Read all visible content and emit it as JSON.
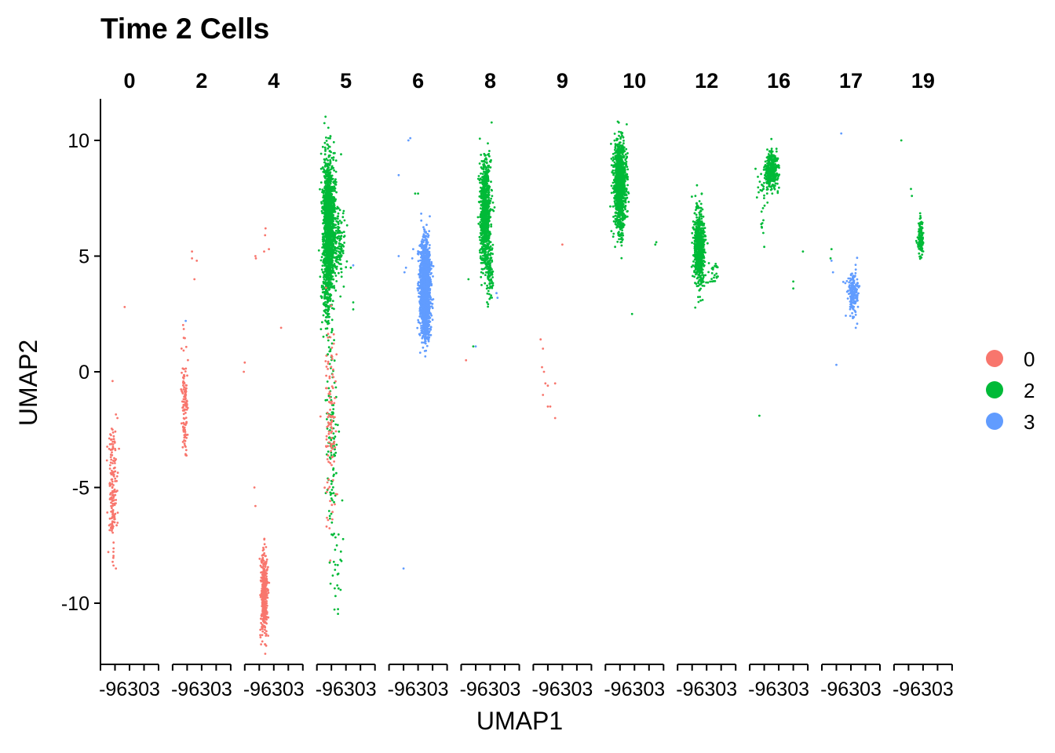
{
  "chart_data": {
    "type": "scatter",
    "title": "Time 2 Cells",
    "xlabel": "UMAP1",
    "ylabel": "UMAP2",
    "ylim": [
      -12.5,
      12
    ],
    "y_ticks": [
      10,
      5,
      0,
      -5,
      -10
    ],
    "y_tick_labels": [
      "10",
      "5",
      "0",
      "-5",
      "-10"
    ],
    "x_ticks_per_panel": [
      -9,
      -6,
      -3,
      0,
      3
    ],
    "x_tick_label_per_panel": "-96303",
    "legend_position": "right",
    "grid": false,
    "series": [
      {
        "name": "0",
        "color": "#F8766D"
      },
      {
        "name": "2",
        "color": "#00BA38"
      },
      {
        "name": "3",
        "color": "#619CFF"
      }
    ],
    "facets": [
      {
        "label": "0",
        "clusters": [
          {
            "series": "0",
            "cx": -6.5,
            "cy": -5.0,
            "sx": 0.45,
            "sy": 1.3,
            "n": 170,
            "points": [
              [
                -4.0,
                2.8
              ],
              [
                -6.5,
                -0.4
              ],
              [
                -5.8,
                -8.5
              ],
              [
                -5.5,
                -2.0
              ]
            ]
          }
        ]
      },
      {
        "label": "2",
        "clusters": [
          {
            "series": "0",
            "cx": -6.5,
            "cy": -1.3,
            "sx": 0.3,
            "sy": 1.2,
            "n": 120,
            "points": [
              [
                -5.0,
                5.2
              ],
              [
                -5.0,
                4.9
              ],
              [
                -4.0,
                4.8
              ],
              [
                -4.5,
                4.0
              ],
              [
                -6.3,
                -3.6
              ]
            ]
          },
          {
            "series": "3",
            "points": [
              [
                -6.3,
                2.2
              ]
            ]
          }
        ]
      },
      {
        "label": "4",
        "clusters": [
          {
            "series": "0",
            "cx": -5.0,
            "cy": -9.6,
            "sx": 0.35,
            "sy": 0.9,
            "n": 380,
            "points": [
              [
                -6.8,
                5.0
              ],
              [
                -6.7,
                4.9
              ],
              [
                -5.0,
                5.2
              ],
              [
                -4.0,
                5.3
              ],
              [
                -4.7,
                6.2
              ],
              [
                -4.8,
                5.9
              ],
              [
                -1.5,
                1.9
              ],
              [
                -9.0,
                0.4
              ],
              [
                -9.2,
                0.0
              ],
              [
                -7.0,
                -5.0
              ],
              [
                -6.8,
                -5.8
              ]
            ]
          }
        ]
      },
      {
        "label": "5",
        "clusters": [
          {
            "series": "2",
            "cx": -6.5,
            "cy": 6.5,
            "sx": 0.6,
            "sy": 1.3,
            "n": 1400
          },
          {
            "series": "2",
            "cx": -6.8,
            "cy": 3.8,
            "sx": 0.5,
            "sy": 1.0,
            "n": 300
          },
          {
            "series": "2",
            "cx": -4.5,
            "cy": 5.5,
            "sx": 0.7,
            "sy": 0.8,
            "n": 120
          },
          {
            "series": "2",
            "cx": -5.8,
            "cy": -3.0,
            "sx": 0.6,
            "sy": 2.0,
            "n": 110
          },
          {
            "series": "0",
            "cx": -6.2,
            "cy": -2.0,
            "sx": 0.6,
            "sy": 2.2,
            "n": 110
          },
          {
            "series": "2",
            "cx": -5.0,
            "cy": -8.0,
            "sx": 0.6,
            "sy": 1.4,
            "n": 25
          },
          {
            "series": "2",
            "points": [
              [
                -4.0,
                9.4
              ],
              [
                -1.5,
                3.0
              ],
              [
                -1.5,
                2.7
              ],
              [
                -2.0,
                4.5
              ]
            ]
          },
          {
            "series": "3",
            "points": [
              [
                -1.5,
                4.6
              ]
            ]
          }
        ]
      },
      {
        "label": "6",
        "clusters": [
          {
            "series": "3",
            "cx": -1.5,
            "cy": 3.6,
            "sx": 0.55,
            "sy": 1.0,
            "n": 1600
          },
          {
            "series": "3",
            "points": [
              [
                -5.0,
                10.0
              ],
              [
                -4.6,
                10.1
              ],
              [
                -7.0,
                8.5
              ],
              [
                -7.0,
                5.0
              ],
              [
                -5.5,
                4.5
              ],
              [
                -5.8,
                4.3
              ],
              [
                -4.0,
                5.3
              ],
              [
                -4.2,
                4.9
              ],
              [
                -6.0,
                -8.5
              ]
            ]
          },
          {
            "series": "2",
            "points": [
              [
                -3.0,
                7.7
              ],
              [
                -3.6,
                7.7
              ]
            ]
          }
        ]
      },
      {
        "label": "8",
        "clusters": [
          {
            "series": "2",
            "cx": -4.0,
            "cy": 6.8,
            "sx": 0.5,
            "sy": 1.2,
            "n": 900
          },
          {
            "series": "2",
            "cx": -3.0,
            "cy": 4.2,
            "sx": 0.3,
            "sy": 0.6,
            "n": 80
          },
          {
            "series": "3",
            "points": [
              [
                -1.5,
                3.2
              ],
              [
                -1.7,
                3.4
              ],
              [
                -6.0,
                1.1
              ]
            ]
          },
          {
            "series": "2",
            "points": [
              [
                -7.5,
                4.0
              ],
              [
                -6.5,
                1.1
              ]
            ]
          },
          {
            "series": "0",
            "points": [
              [
                -8.0,
                0.5
              ]
            ]
          }
        ]
      },
      {
        "label": "9",
        "clusters": [
          {
            "series": "0",
            "points": [
              [
                -7.5,
                1.4
              ],
              [
                -7.0,
                1.0
              ],
              [
                -7.2,
                0.2
              ],
              [
                -6.8,
                0.0
              ],
              [
                -6.5,
                -0.5
              ],
              [
                -6.0,
                -0.6
              ],
              [
                -5.5,
                -1.5
              ],
              [
                -4.5,
                -0.5
              ],
              [
                -4.5,
                -2.0
              ],
              [
                -7.0,
                -1.0
              ],
              [
                -6.0,
                -1.5
              ],
              [
                -3.0,
                5.5
              ]
            ]
          }
        ]
      },
      {
        "label": "10",
        "clusters": [
          {
            "series": "2",
            "cx": -6.0,
            "cy": 8.2,
            "sx": 0.6,
            "sy": 0.9,
            "n": 1100
          },
          {
            "series": "2",
            "cx": -6.0,
            "cy": 6.4,
            "sx": 0.5,
            "sy": 0.4,
            "n": 60
          },
          {
            "series": "2",
            "points": [
              [
                -7.0,
                5.4
              ],
              [
                -3.5,
                2.5
              ],
              [
                1.5,
                5.6
              ],
              [
                1.3,
                5.5
              ]
            ]
          }
        ]
      },
      {
        "label": "12",
        "clusters": [
          {
            "series": "2",
            "cx": -4.5,
            "cy": 5.4,
            "sx": 0.55,
            "sy": 0.8,
            "n": 700
          },
          {
            "series": "2",
            "cx": -1.5,
            "cy": 4.2,
            "sx": 0.5,
            "sy": 0.35,
            "n": 25
          },
          {
            "series": "2",
            "points": [
              [
                -4.0,
                7.7
              ]
            ]
          }
        ]
      },
      {
        "label": "16",
        "clusters": [
          {
            "series": "2",
            "cx": -4.5,
            "cy": 8.7,
            "sx": 0.7,
            "sy": 0.4,
            "n": 320
          },
          {
            "series": "2",
            "cx": -6.5,
            "cy": 7.5,
            "sx": 0.6,
            "sy": 0.8,
            "n": 25
          },
          {
            "series": "2",
            "points": [
              [
                -6.0,
                5.4
              ],
              [
                -6.2,
                6.0
              ],
              [
                -7.0,
                -1.9
              ],
              [
                2.0,
                5.2
              ],
              [
                0.0,
                3.9
              ],
              [
                0.0,
                3.6
              ]
            ]
          }
        ]
      },
      {
        "label": "17",
        "clusters": [
          {
            "series": "3",
            "cx": -2.5,
            "cy": 3.4,
            "sx": 0.55,
            "sy": 0.45,
            "n": 200
          },
          {
            "series": "3",
            "points": [
              [
                -5.0,
                10.3
              ],
              [
                -7.0,
                4.8
              ],
              [
                -6.7,
                4.3
              ],
              [
                -6.0,
                0.3
              ],
              [
                -2.0,
                1.9
              ]
            ]
          },
          {
            "series": "2",
            "points": [
              [
                -7.0,
                5.3
              ],
              [
                -7.2,
                4.9
              ]
            ]
          }
        ]
      },
      {
        "label": "19",
        "clusters": [
          {
            "series": "2",
            "cx": -3.5,
            "cy": 5.8,
            "sx": 0.25,
            "sy": 0.35,
            "n": 130
          },
          {
            "series": "2",
            "points": [
              [
                -7.5,
                10.0
              ],
              [
                -5.5,
                7.9
              ],
              [
                -5.3,
                7.6
              ]
            ]
          }
        ]
      }
    ]
  }
}
